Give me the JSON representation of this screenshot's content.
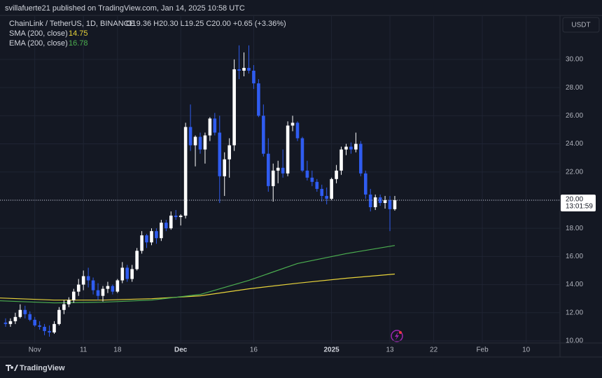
{
  "header": {
    "publisher": "svillafuerte21 published on TradingView.com, Jan 14, 2025 10:58 UTC",
    "brand": "TradingView"
  },
  "chart_data": {
    "type": "candlestick",
    "title": "ChainLink / TetherUS, 1D, BINANCE",
    "legend_ohlc": "O19.36 H20.30 L19.25 C20.00 +0.65 (+3.36%)",
    "currency": "USDT",
    "up_color": "#ffffff",
    "down_color": "#2f5cf0",
    "grid": true,
    "categories": [
      null,
      null,
      null,
      null,
      null,
      null,
      null,
      null,
      null,
      null,
      null,
      null,
      null,
      null,
      null,
      null,
      null,
      null,
      null,
      null,
      null,
      null,
      null,
      null,
      null,
      null,
      null,
      null,
      null,
      null,
      null,
      null,
      null,
      null,
      null,
      null,
      null,
      null,
      null,
      null,
      null,
      null,
      null,
      null,
      null,
      null,
      null,
      null,
      null,
      null,
      null,
      null,
      null,
      null,
      null,
      null,
      null,
      null,
      null,
      null,
      null,
      null,
      null,
      null,
      null,
      null,
      null,
      null,
      null,
      null,
      null,
      null,
      null,
      null,
      null,
      null,
      null,
      null,
      null,
      null,
      null
    ],
    "open": [
      11.3,
      11.2,
      11.4,
      11.7,
      12.2,
      11.9,
      11.5,
      11.1,
      11.0,
      10.7,
      10.6,
      11.2,
      12.2,
      12.6,
      12.9,
      13.5,
      14.0,
      14.6,
      14.3,
      13.6,
      13.2,
      13.7,
      13.9,
      13.5,
      14.3,
      15.2,
      14.4,
      15.1,
      16.4,
      17.5,
      17.0,
      17.8,
      17.3,
      18.4,
      18.0,
      18.9,
      18.8,
      18.9,
      25.2,
      23.9,
      24.5,
      23.6,
      24.6,
      25.8,
      24.8,
      21.7,
      22.9,
      23.9,
      29.3,
      29.2,
      29.4,
      29.2,
      28.3,
      26.0,
      23.3,
      21.0,
      22.1,
      22.3,
      21.9,
      25.3,
      25.5,
      24.4,
      22.1,
      21.6,
      21.3,
      20.8,
      20.3,
      20.1,
      21.5,
      22.1,
      23.6,
      23.8,
      23.6,
      24.0,
      21.9,
      20.4,
      19.5,
      20.2,
      19.8,
      20.0,
      19.36
    ],
    "high": [
      11.6,
      11.6,
      12.0,
      12.6,
      12.5,
      12.1,
      11.7,
      11.4,
      11.2,
      11.1,
      11.4,
      12.4,
      12.9,
      13.1,
      13.7,
      14.4,
      15.0,
      15.2,
      14.5,
      14.1,
      13.9,
      14.2,
      14.0,
      14.4,
      15.6,
      15.4,
      15.4,
      16.6,
      17.8,
      17.6,
      18.0,
      18.0,
      18.6,
      18.6,
      19.2,
      19.3,
      19.0,
      25.5,
      26.8,
      24.6,
      24.8,
      24.8,
      25.9,
      26.2,
      26.0,
      23.4,
      24.4,
      30.0,
      31.0,
      30.5,
      31.0,
      29.6,
      28.6,
      26.8,
      24.4,
      22.6,
      22.8,
      23.6,
      25.6,
      26.0,
      25.6,
      24.5,
      22.8,
      22.1,
      21.5,
      21.1,
      20.9,
      21.6,
      22.5,
      23.8,
      24.0,
      24.1,
      24.8,
      24.2,
      22.1,
      20.8,
      20.4,
      20.4,
      20.3,
      20.3,
      20.3
    ],
    "low": [
      11.0,
      11.0,
      11.2,
      11.6,
      11.6,
      11.4,
      11.0,
      10.8,
      10.4,
      10.3,
      10.5,
      11.1,
      11.9,
      12.4,
      12.7,
      13.2,
      13.6,
      13.8,
      13.3,
      12.9,
      12.8,
      13.4,
      13.3,
      13.4,
      14.1,
      14.2,
      14.2,
      15.0,
      16.2,
      16.6,
      16.8,
      16.9,
      17.1,
      17.8,
      17.9,
      18.6,
      18.2,
      18.7,
      23.5,
      22.4,
      23.3,
      22.6,
      24.2,
      24.6,
      19.8,
      20.3,
      21.6,
      23.5,
      28.6,
      28.8,
      29.0,
      27.9,
      25.9,
      23.1,
      20.6,
      19.9,
      21.2,
      21.6,
      21.7,
      24.9,
      24.2,
      22.0,
      21.4,
      21.0,
      20.6,
      19.9,
      19.7,
      20.0,
      21.2,
      21.8,
      23.2,
      23.3,
      23.4,
      21.7,
      20.1,
      19.2,
      19.3,
      19.6,
      19.4,
      17.8,
      19.25
    ],
    "close": [
      11.2,
      11.4,
      11.7,
      12.2,
      11.9,
      11.5,
      11.1,
      11.0,
      10.7,
      10.6,
      11.2,
      12.2,
      12.6,
      12.9,
      13.5,
      14.0,
      14.6,
      14.3,
      13.6,
      13.2,
      13.7,
      13.9,
      13.5,
      14.3,
      15.2,
      14.4,
      15.1,
      16.4,
      17.5,
      17.0,
      17.8,
      17.3,
      18.4,
      18.0,
      18.9,
      18.8,
      18.9,
      25.2,
      23.9,
      24.5,
      23.6,
      24.6,
      25.8,
      24.8,
      21.7,
      22.9,
      23.9,
      29.3,
      29.2,
      29.4,
      29.2,
      28.3,
      26.0,
      23.3,
      21.0,
      22.1,
      22.3,
      21.9,
      25.3,
      25.5,
      24.4,
      22.1,
      21.6,
      21.3,
      20.8,
      20.3,
      20.1,
      21.5,
      22.1,
      23.6,
      23.8,
      23.6,
      24.0,
      21.9,
      20.4,
      19.5,
      20.2,
      19.8,
      20.0,
      19.36,
      20.0
    ],
    "indicators": [
      {
        "name": "SMA (200, close)",
        "color": "#e8d33a",
        "x": [
          -1.2,
          10,
          20,
          30,
          40,
          50,
          60,
          70,
          80
        ],
        "values": [
          13.05,
          12.9,
          12.9,
          13.0,
          13.2,
          13.7,
          14.1,
          14.45,
          14.75
        ]
      },
      {
        "name": "EMA (200, close)",
        "color": "#4caf50",
        "x": [
          -1.2,
          10,
          20,
          30,
          40,
          50,
          60,
          70,
          80
        ],
        "values": [
          12.85,
          12.7,
          12.75,
          12.9,
          13.3,
          14.3,
          15.5,
          16.2,
          16.78
        ]
      }
    ],
    "price_line": {
      "value": 20,
      "label": "20.00",
      "countdown": "13:01:59"
    },
    "xlim": [
      -1.15,
      113.96
    ],
    "xticks": [
      {
        "value": 6,
        "label": "Nov"
      },
      {
        "value": 16,
        "label": "11"
      },
      {
        "value": 23,
        "label": "18"
      },
      {
        "value": 36,
        "label": "Dec"
      },
      {
        "value": 51,
        "label": "16"
      },
      {
        "value": 67,
        "label": "2025"
      },
      {
        "value": 79,
        "label": "13"
      },
      {
        "value": 88,
        "label": "22"
      },
      {
        "value": 98,
        "label": "Feb"
      },
      {
        "value": 107,
        "label": "10"
      }
    ],
    "ylim": [
      9.85,
      33.13
    ],
    "yticks": [
      {
        "value": 10,
        "label": "10.00"
      },
      {
        "value": 12,
        "label": "12.00"
      },
      {
        "value": 14,
        "label": "14.00"
      },
      {
        "value": 16,
        "label": "16.00"
      },
      {
        "value": 18,
        "label": "18.00"
      },
      {
        "value": 20,
        "label": "20.00"
      },
      {
        "value": 22,
        "label": "22.00"
      },
      {
        "value": 24,
        "label": "24.00"
      },
      {
        "value": 26,
        "label": "26.00"
      },
      {
        "value": 28,
        "label": "28.00"
      },
      {
        "value": 30,
        "label": "30.00"
      }
    ]
  }
}
